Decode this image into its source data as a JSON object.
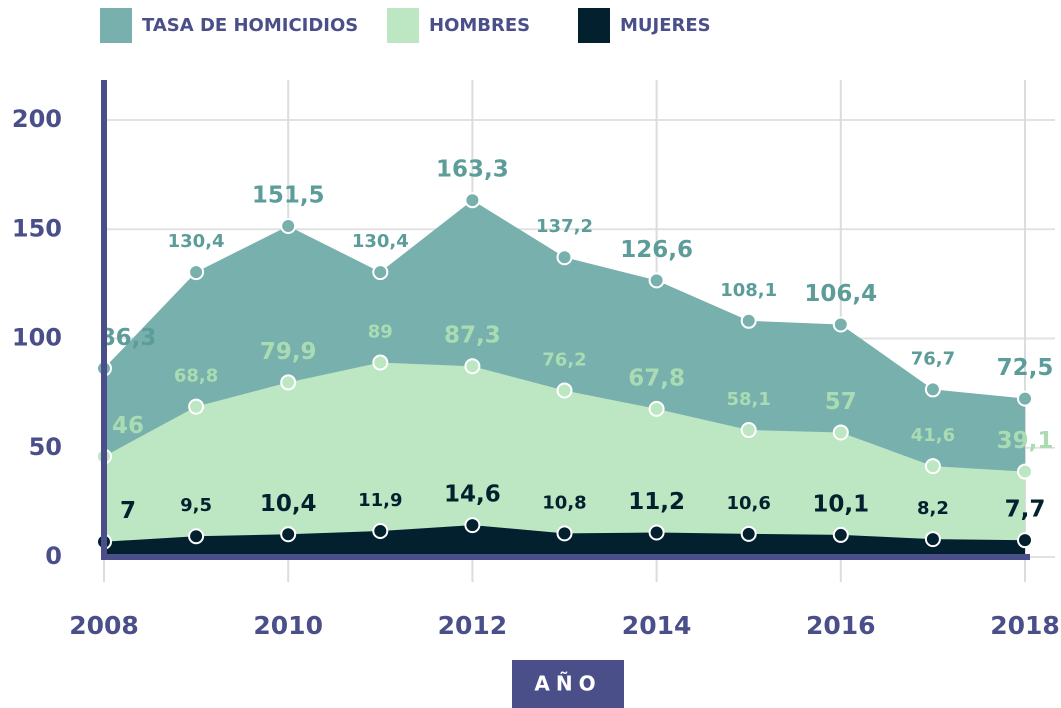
{
  "chart_data": {
    "type": "area",
    "x": [
      2008,
      2009,
      2010,
      2011,
      2012,
      2013,
      2014,
      2015,
      2016,
      2017,
      2018
    ],
    "xlim": [
      2008,
      2018
    ],
    "xticks": [
      2008,
      2010,
      2012,
      2014,
      2016,
      2018
    ],
    "ylim": [
      0,
      200
    ],
    "yticks": [
      0,
      50,
      100,
      150,
      200
    ],
    "grid": true,
    "x_label": "AÑO",
    "series": [
      {
        "name": "TASA DE HOMICIDIOS",
        "color": "#78b0ae",
        "values": [
          86.3,
          130.4,
          151.5,
          130.4,
          163.3,
          137.2,
          126.6,
          108.1,
          106.4,
          76.7,
          72.5
        ],
        "value_labels": [
          "86,3",
          "130,4",
          "151,5",
          "130,4",
          "163,3",
          "137,2",
          "126,6",
          "108,1",
          "106,4",
          "76,7",
          "72,5"
        ]
      },
      {
        "name": "HOMBRES",
        "color": "#bde6c3",
        "values": [
          46,
          68.8,
          79.9,
          89,
          87.3,
          76.2,
          67.8,
          58.1,
          57,
          41.6,
          39.1
        ],
        "value_labels": [
          "46",
          "68,8",
          "79,9",
          "89",
          "87,3",
          "76,2",
          "67,8",
          "58,1",
          "57",
          "41,6",
          "39,1"
        ]
      },
      {
        "name": "MUJERES",
        "color": "#02202e",
        "values": [
          7,
          9.5,
          10.4,
          11.9,
          14.6,
          10.8,
          11.2,
          10.6,
          10.1,
          8.2,
          7.7
        ],
        "value_labels": [
          "7",
          "9,5",
          "10,4",
          "11,9",
          "14,6",
          "10,8",
          "11,2",
          "10,6",
          "10,1",
          "8,2",
          "7,7"
        ]
      }
    ]
  }
}
